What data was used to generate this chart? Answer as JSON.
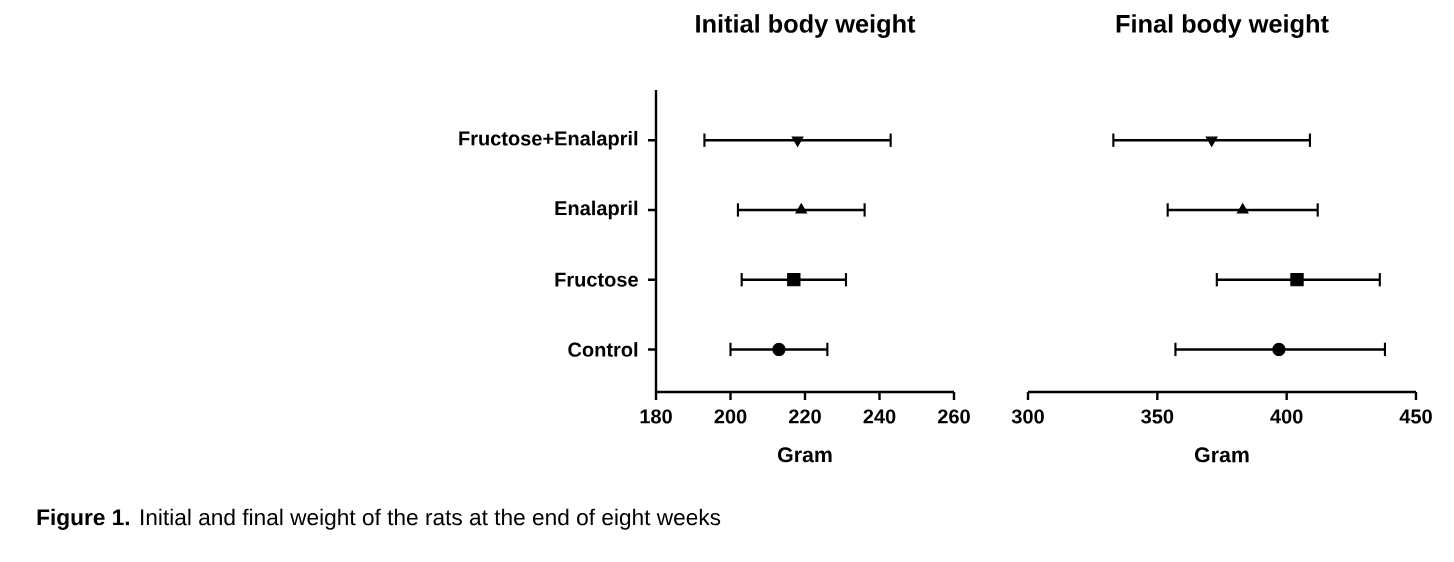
{
  "chart_data": [
    {
      "type": "scatter",
      "orientation": "horizontal",
      "title": "Initial body weight",
      "xlabel": "Gram",
      "categories": [
        "Fructose+Enalapril",
        "Enalapril",
        "Fructose",
        "Control"
      ],
      "xlim": [
        180,
        260
      ],
      "xticks": [
        180,
        200,
        220,
        240,
        260
      ],
      "grid": false,
      "series": [
        {
          "color": "#000000",
          "marker": "triangle-down",
          "values": [
            218,
            null,
            null,
            null
          ],
          "errors": [
            [
              193,
              243
            ],
            null,
            null,
            null
          ]
        },
        {
          "color": "#000000",
          "marker": "triangle",
          "values": [
            null,
            219,
            null,
            null
          ],
          "errors": [
            null,
            [
              202,
              236
            ],
            null,
            null
          ]
        },
        {
          "color": "#000000",
          "marker": "square",
          "values": [
            null,
            null,
            217,
            null
          ],
          "errors": [
            null,
            null,
            [
              203,
              231
            ],
            null
          ]
        },
        {
          "color": "#000000",
          "marker": "circle",
          "values": [
            null,
            null,
            null,
            213
          ],
          "errors": [
            null,
            null,
            null,
            [
              200,
              226
            ]
          ]
        }
      ],
      "annotations": [
        "**Figure 1.** Initial and final weight of the rats at the end of eight weeks"
      ]
    },
    {
      "type": "scatter",
      "orientation": "horizontal",
      "title": "Final body weight",
      "xlabel": "Gram",
      "categories": [
        null,
        null,
        null,
        null
      ],
      "tick_labels": "x",
      "xlim": [
        300,
        450
      ],
      "xticks": [
        300,
        350,
        400,
        450
      ],
      "grid": false,
      "series": [
        {
          "color": "#000000",
          "marker": "triangle-down",
          "values": [
            371,
            null,
            null,
            null
          ],
          "errors": [
            [
              333,
              409
            ],
            null,
            null,
            null
          ]
        },
        {
          "color": "#000000",
          "marker": "triangle",
          "values": [
            null,
            383,
            null,
            null
          ],
          "errors": [
            null,
            [
              354,
              412
            ],
            null,
            null
          ]
        },
        {
          "color": "#000000",
          "marker": "square",
          "values": [
            null,
            null,
            404,
            null
          ],
          "errors": [
            null,
            null,
            [
              373,
              436
            ],
            null
          ]
        },
        {
          "color": "#000000",
          "marker": "circle",
          "values": [
            null,
            null,
            null,
            397
          ],
          "errors": [
            null,
            null,
            null,
            [
              357,
              438
            ]
          ]
        }
      ]
    }
  ]
}
